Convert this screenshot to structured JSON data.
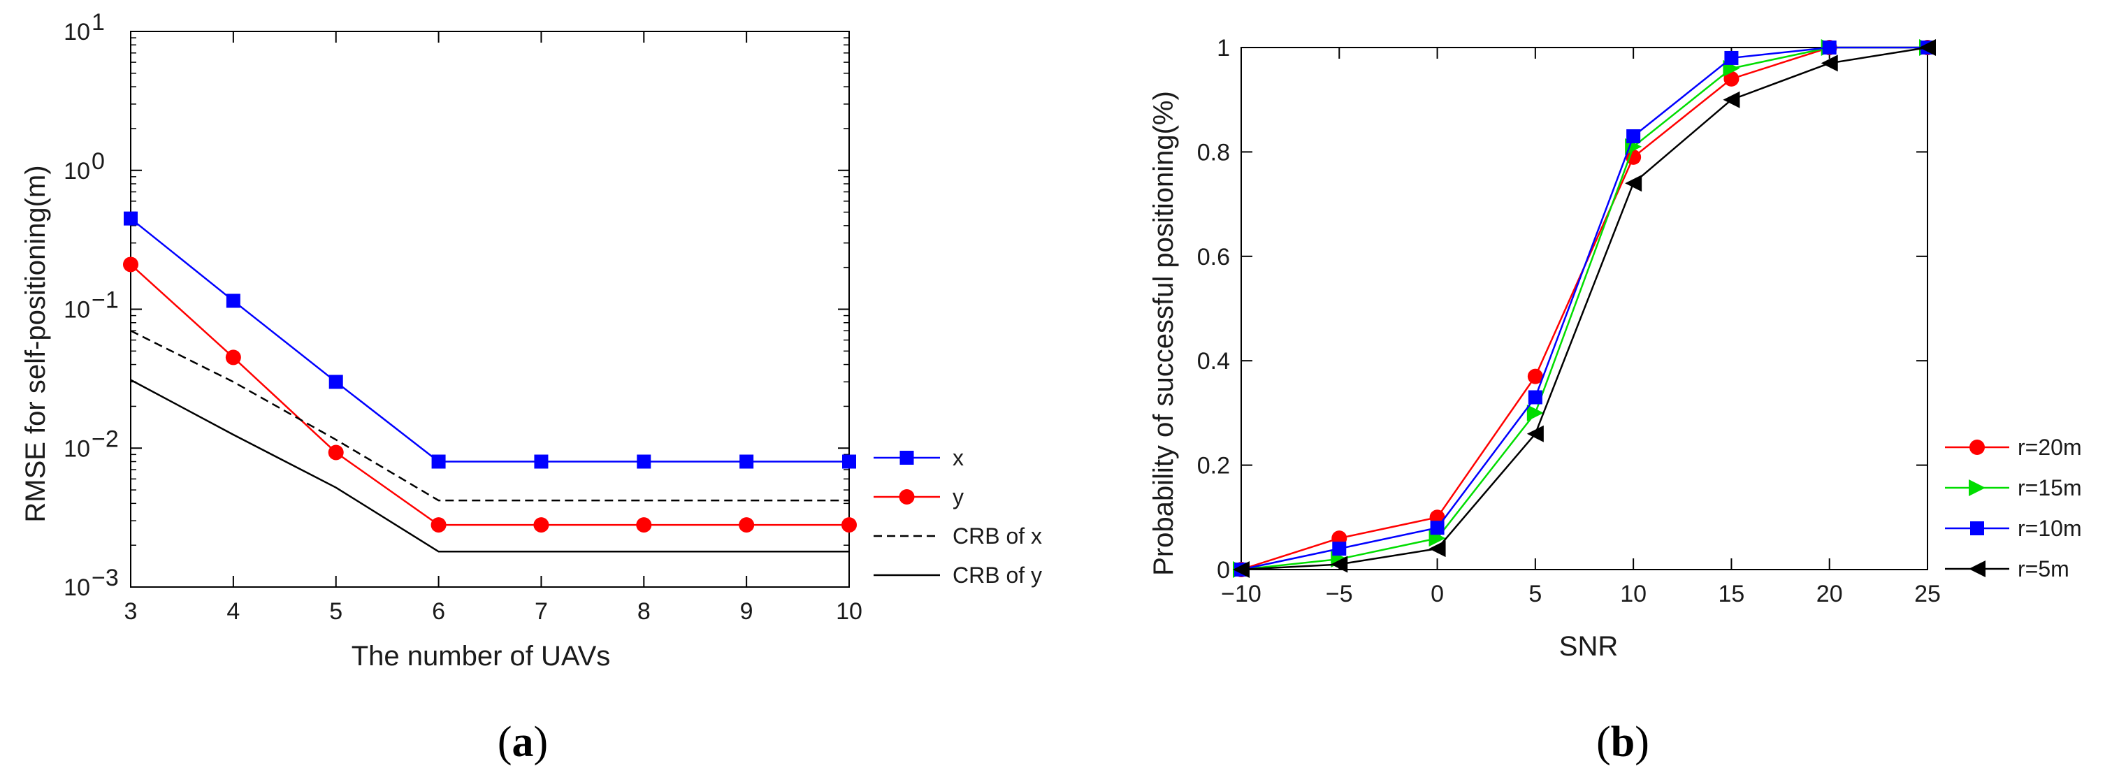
{
  "chart_data": [
    {
      "type": "line",
      "panel_label": {
        "open": "(",
        "letter": "a",
        "close": ")"
      },
      "yscale": "log",
      "xlabel": "The number of UAVs",
      "ylabel": "RMSE for self-positioning(m)",
      "xlim": [
        3,
        10
      ],
      "ylim": [
        0.001,
        10
      ],
      "xticks": [
        "3",
        "4",
        "5",
        "6",
        "7",
        "8",
        "9",
        "10"
      ],
      "yticks": [
        {
          "value": 0.001,
          "base": "10",
          "exp": "−3"
        },
        {
          "value": 0.01,
          "base": "10",
          "exp": "−2"
        },
        {
          "value": 0.1,
          "base": "10",
          "exp": "−1"
        },
        {
          "value": 1,
          "base": "10",
          "exp": "0"
        },
        {
          "value": 10,
          "base": "10",
          "exp": "1"
        }
      ],
      "legend_position": "outside-right",
      "series": [
        {
          "name": "x",
          "color": "#0000ff",
          "marker": "square",
          "dash": "solid",
          "x": [
            3,
            4,
            5,
            6,
            7,
            8,
            9,
            10
          ],
          "values": [
            0.45,
            0.115,
            0.03,
            0.008,
            0.008,
            0.008,
            0.008,
            0.008
          ]
        },
        {
          "name": "y",
          "color": "#ff0000",
          "marker": "circle",
          "dash": "solid",
          "x": [
            3,
            4,
            5,
            6,
            7,
            8,
            9,
            10
          ],
          "values": [
            0.21,
            0.045,
            0.0093,
            0.0028,
            0.0028,
            0.0028,
            0.0028,
            0.0028
          ]
        },
        {
          "name": "CRB of x",
          "color": "#000000",
          "marker": "none",
          "dash": "dashed",
          "x": [
            3,
            4,
            5,
            6,
            7,
            8,
            9,
            10
          ],
          "values": [
            0.07,
            0.03,
            0.0115,
            0.0042,
            0.0042,
            0.0042,
            0.0042,
            0.0042
          ]
        },
        {
          "name": "CRB of y",
          "color": "#000000",
          "marker": "none",
          "dash": "solid",
          "x": [
            3,
            4,
            5,
            6,
            7,
            8,
            9,
            10
          ],
          "values": [
            0.031,
            0.0125,
            0.0052,
            0.0018,
            0.0018,
            0.0018,
            0.0018,
            0.0018
          ]
        }
      ]
    },
    {
      "type": "line",
      "panel_label": {
        "open": "(",
        "letter": "b",
        "close": ")"
      },
      "yscale": "linear",
      "xlabel": "SNR",
      "ylabel": "Probability of successful positioning(%)",
      "xlim": [
        -10,
        25
      ],
      "ylim": [
        0,
        1
      ],
      "xticks": [
        "−10",
        "−5",
        "0",
        "5",
        "10",
        "15",
        "20",
        "25"
      ],
      "xtick_values": [
        -10,
        -5,
        0,
        5,
        10,
        15,
        20,
        25
      ],
      "yticks": [
        "0",
        "0.2",
        "0.4",
        "0.6",
        "0.8",
        "1"
      ],
      "ytick_values": [
        0,
        0.2,
        0.4,
        0.6,
        0.8,
        1
      ],
      "legend_position": "outside-right",
      "series": [
        {
          "name": "r=20m",
          "color": "#ff0000",
          "marker": "circle",
          "x": [
            -10,
            -5,
            0,
            5,
            10,
            15,
            20,
            25
          ],
          "values": [
            0,
            0.06,
            0.1,
            0.37,
            0.79,
            0.94,
            1.0,
            1.0
          ]
        },
        {
          "name": "r=15m",
          "color": "#00dd00",
          "marker": "triangle-right",
          "x": [
            -10,
            -5,
            0,
            5,
            10,
            15,
            20,
            25
          ],
          "values": [
            0,
            0.02,
            0.06,
            0.3,
            0.81,
            0.96,
            1.0,
            1.0
          ]
        },
        {
          "name": "r=10m",
          "color": "#0000ff",
          "marker": "square",
          "x": [
            -10,
            -5,
            0,
            5,
            10,
            15,
            20,
            25
          ],
          "values": [
            0,
            0.04,
            0.08,
            0.33,
            0.83,
            0.98,
            1.0,
            1.0
          ]
        },
        {
          "name": "r=5m",
          "color": "#000000",
          "marker": "triangle-left",
          "x": [
            -10,
            -5,
            0,
            5,
            10,
            15,
            20,
            25
          ],
          "values": [
            0,
            0.01,
            0.04,
            0.26,
            0.74,
            0.9,
            0.97,
            1.0
          ]
        }
      ]
    }
  ]
}
